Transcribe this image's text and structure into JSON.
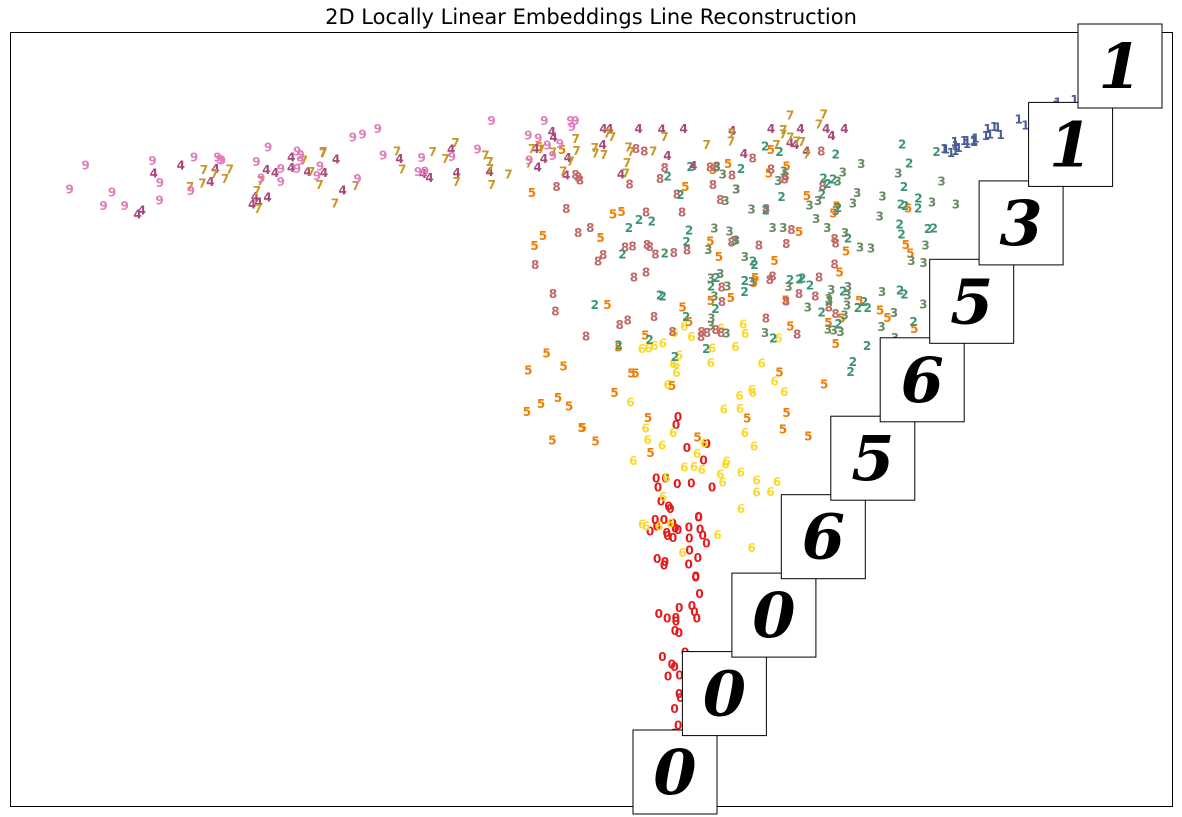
{
  "chart_data": {
    "type": "scatter",
    "title": "2D Locally Linear Embeddings Line Reconstruction",
    "xlabel": "",
    "ylabel": "",
    "axis_ticks": false,
    "grid": false,
    "marker": "digit class label text",
    "colors": {
      "0": "#e41a1c",
      "1": "#4b5d96",
      "2": "#3a9473",
      "3": "#6a8a64",
      "4": "#a8477c",
      "5": "#f07d02",
      "6": "#fcd92a",
      "7": "#c9962a",
      "8": "#c06868",
      "9": "#e17cbd"
    },
    "clusters": [
      {
        "label": "0",
        "description": "narrow vertical band at bottom center",
        "x_range": [
          0.53,
          0.6
        ],
        "y_range": [
          0.05,
          0.5
        ],
        "count": 70
      },
      {
        "label": "6",
        "description": "band just above the 0 cluster",
        "x_range": [
          0.53,
          0.67
        ],
        "y_range": [
          0.32,
          0.62
        ],
        "count": 60
      },
      {
        "label": "5",
        "description": "spread through middle region",
        "x_range": [
          0.44,
          0.78
        ],
        "y_range": [
          0.45,
          0.85
        ],
        "count": 70
      },
      {
        "label": "8",
        "description": "middle region",
        "x_range": [
          0.45,
          0.72
        ],
        "y_range": [
          0.6,
          0.85
        ],
        "count": 70
      },
      {
        "label": "2",
        "description": "upper middle region",
        "x_range": [
          0.5,
          0.8
        ],
        "y_range": [
          0.55,
          0.85
        ],
        "count": 70
      },
      {
        "label": "3",
        "description": "upper right-center region",
        "x_range": [
          0.6,
          0.82
        ],
        "y_range": [
          0.6,
          0.84
        ],
        "count": 70
      },
      {
        "label": "4",
        "description": "left arm and upper middle",
        "x_range": [
          0.1,
          0.72
        ],
        "y_range": [
          0.7,
          0.87
        ],
        "count": 50
      },
      {
        "label": "7",
        "description": "left arm and top middle",
        "x_range": [
          0.15,
          0.72
        ],
        "y_range": [
          0.73,
          0.89
        ],
        "count": 60
      },
      {
        "label": "9",
        "description": "far left tip of left arm",
        "x_range": [
          0.05,
          0.5
        ],
        "y_range": [
          0.74,
          0.88
        ],
        "count": 45
      },
      {
        "label": "1",
        "description": "upper right arm",
        "x_range": [
          0.8,
          0.96
        ],
        "y_range": [
          0.84,
          0.93
        ],
        "count": 50
      }
    ],
    "reconstruction_images": [
      {
        "order": 1,
        "depicted_digit": "0"
      },
      {
        "order": 2,
        "depicted_digit": "0"
      },
      {
        "order": 3,
        "depicted_digit": "0"
      },
      {
        "order": 4,
        "depicted_digit": "6"
      },
      {
        "order": 5,
        "depicted_digit": "5"
      },
      {
        "order": 6,
        "depicted_digit": "6"
      },
      {
        "order": 7,
        "depicted_digit": "5"
      },
      {
        "order": 8,
        "depicted_digit": "3"
      },
      {
        "order": 9,
        "depicted_digit": "1"
      },
      {
        "order": 10,
        "depicted_digit": "1"
      }
    ]
  }
}
